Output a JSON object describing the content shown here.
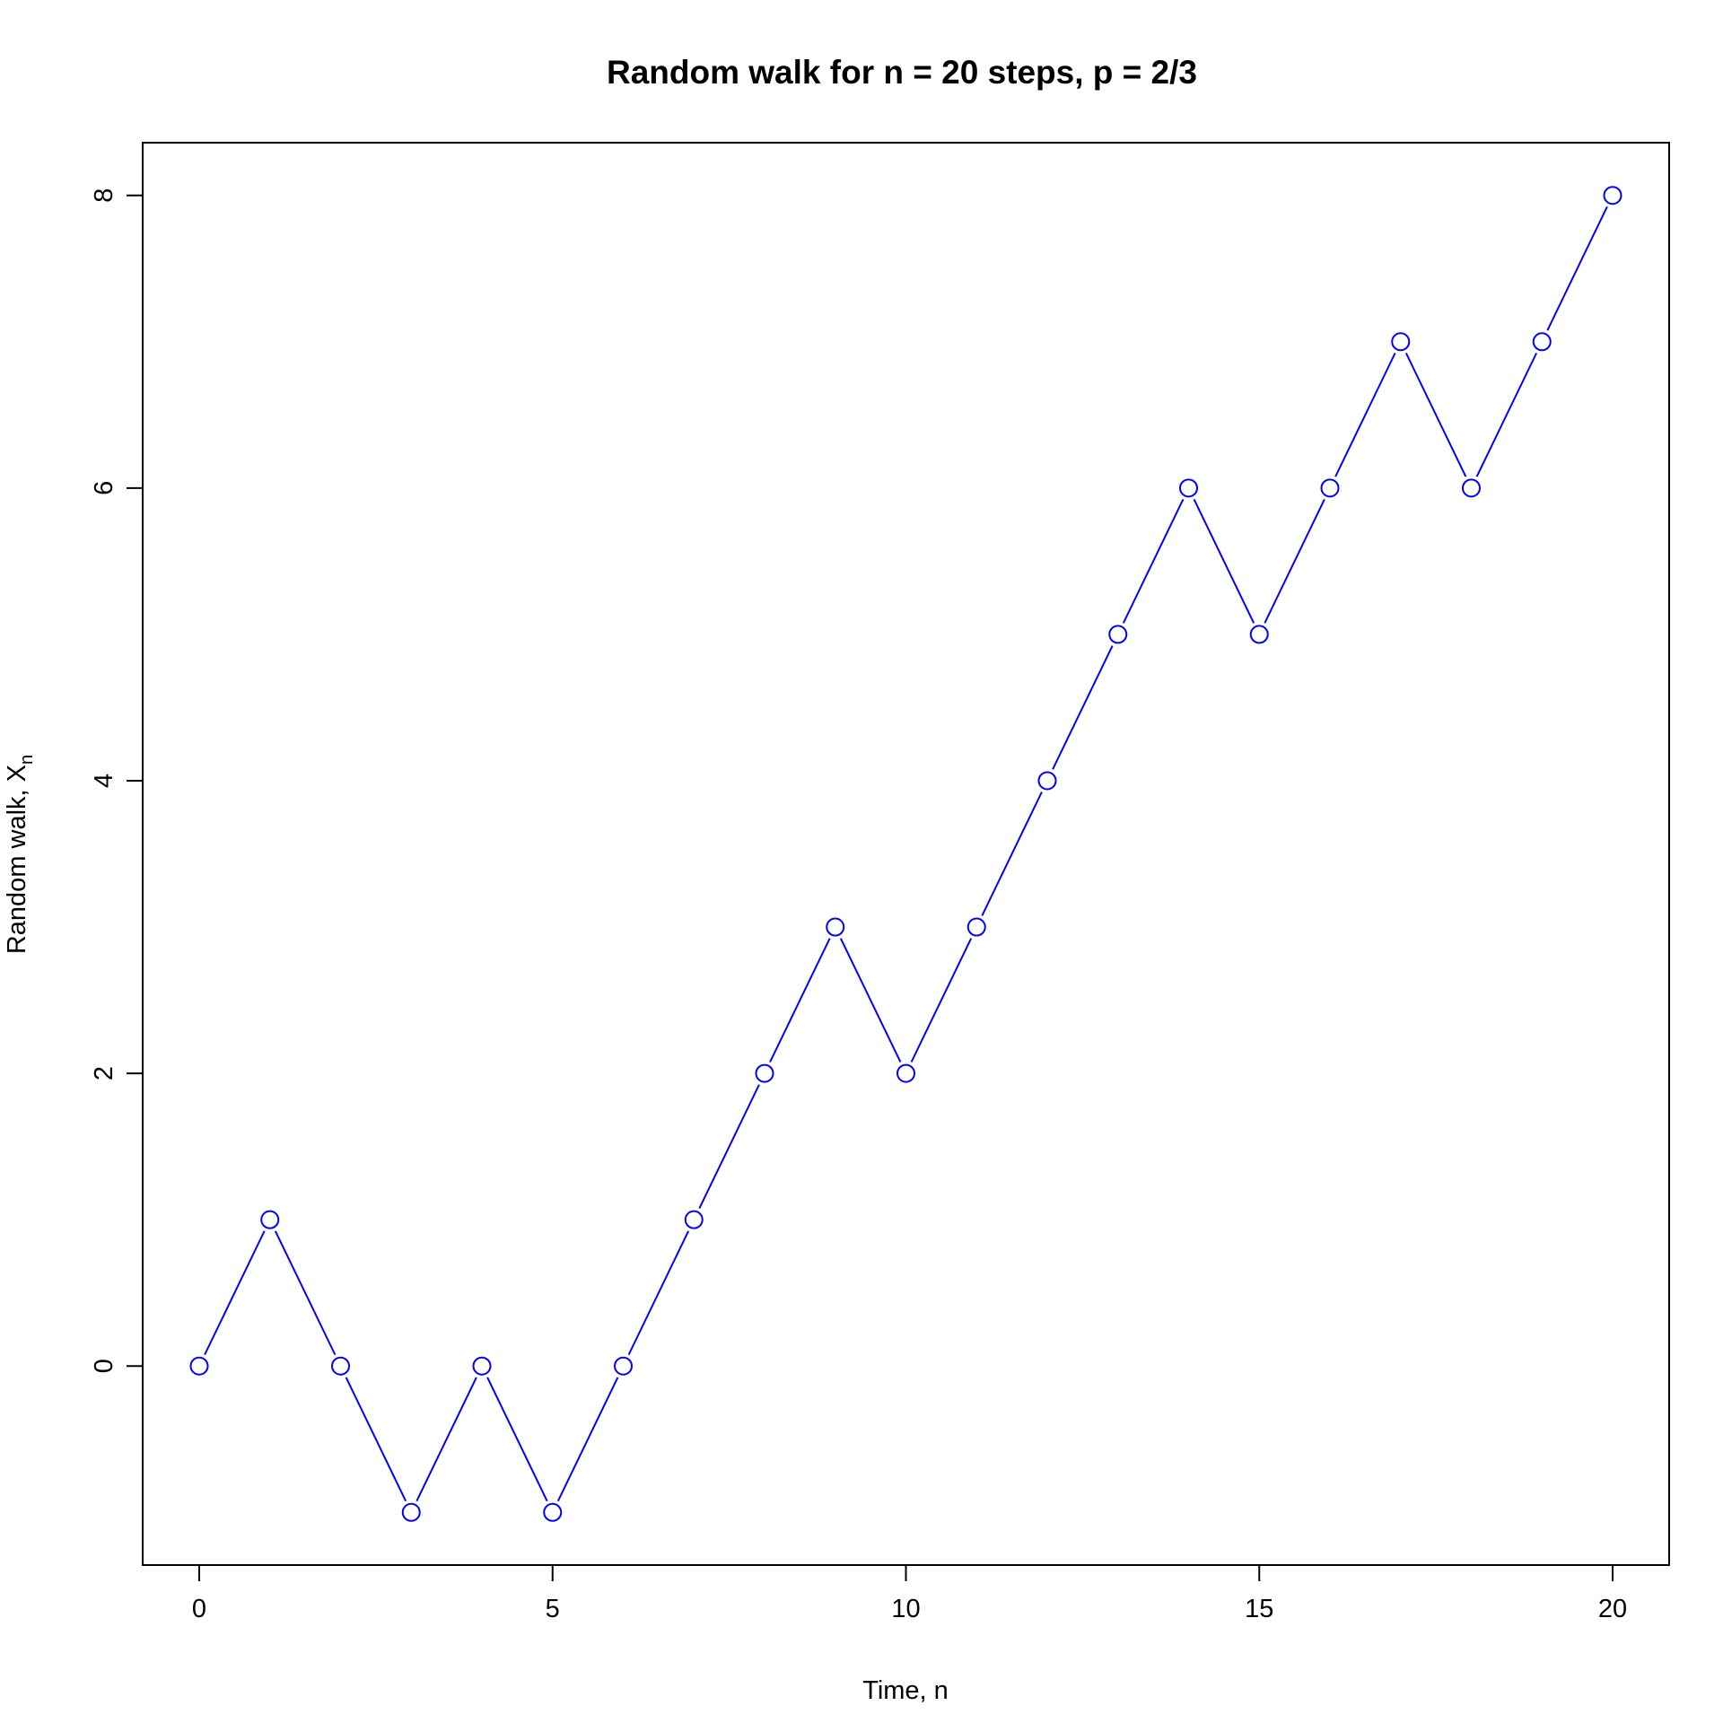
{
  "chart_data": {
    "type": "line",
    "title": "Random walk for n = 20 steps, p = 2/3",
    "xlabel": "Time, n",
    "ylabel_main": "Random walk, X",
    "ylabel_subscript": "n",
    "x": [
      0,
      1,
      2,
      3,
      4,
      5,
      6,
      7,
      8,
      9,
      10,
      11,
      12,
      13,
      14,
      15,
      16,
      17,
      18,
      19,
      20
    ],
    "series": [
      {
        "values": [
          0,
          1,
          0,
          -1,
          0,
          -1,
          0,
          1,
          2,
          3,
          2,
          3,
          4,
          5,
          6,
          5,
          6,
          7,
          6,
          7,
          8
        ],
        "color": "#0000ff",
        "marker": "open-circle"
      }
    ],
    "xlim": [
      -0.8,
      20.8
    ],
    "ylim": [
      -1.36,
      8.36
    ],
    "xticks": [
      0,
      5,
      10,
      15,
      20
    ],
    "yticks": [
      0,
      2,
      4,
      6,
      8
    ],
    "grid": false
  }
}
